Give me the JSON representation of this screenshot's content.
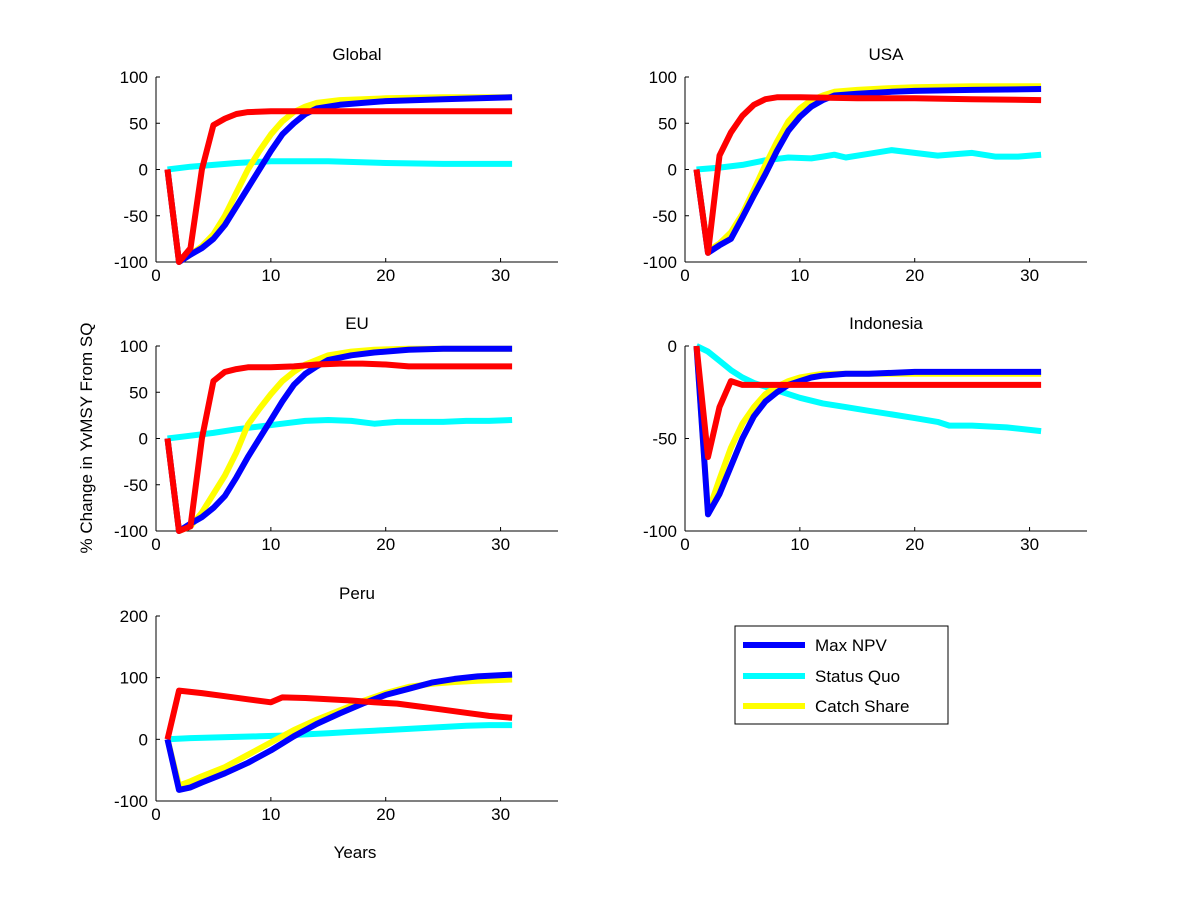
{
  "colors": {
    "max_npv": "#0000ff",
    "status_quo": "#00ffff",
    "catch_share": "#ffff00",
    "red_series": "#ff0000",
    "axes": "#000000",
    "background": "#ffffff"
  },
  "figure": {
    "ylabel": "% Change in YvMSY From SQ",
    "xlabel": "Years"
  },
  "legend": {
    "placement": "right of Peru panel",
    "entries": [
      {
        "label": "Max NPV",
        "color": "#0000ff"
      },
      {
        "label": "Status Quo",
        "color": "#00ffff"
      },
      {
        "label": "Catch Share",
        "color": "#ffff00"
      }
    ]
  },
  "chart_data": [
    {
      "type": "line",
      "title": "Global",
      "xlim": [
        0,
        35
      ],
      "ylim": [
        -100,
        100
      ],
      "xticks": [
        0,
        10,
        20,
        30
      ],
      "yticks": [
        -100,
        -50,
        0,
        50,
        100
      ],
      "series": [
        {
          "name": "Status Quo",
          "color": "#00ffff",
          "x": [
            1,
            3,
            5,
            7,
            10,
            15,
            20,
            25,
            31
          ],
          "y": [
            0,
            3,
            5,
            7,
            9,
            9,
            7,
            6,
            6
          ]
        },
        {
          "name": "Catch Share",
          "color": "#ffff00",
          "x": [
            1,
            2,
            3,
            4,
            5,
            6,
            7,
            8,
            9,
            10,
            11,
            12,
            13,
            14,
            16,
            18,
            20,
            25,
            31
          ],
          "y": [
            0,
            -100,
            -92,
            -83,
            -70,
            -50,
            -25,
            0,
            20,
            38,
            52,
            62,
            68,
            72,
            75,
            76,
            77,
            78,
            78
          ]
        },
        {
          "name": "Max NPV",
          "color": "#0000ff",
          "x": [
            1,
            2,
            3,
            4,
            5,
            6,
            7,
            8,
            9,
            10,
            11,
            12,
            13,
            14,
            16,
            18,
            20,
            25,
            31
          ],
          "y": [
            0,
            -100,
            -92,
            -85,
            -75,
            -60,
            -40,
            -20,
            0,
            20,
            38,
            50,
            60,
            66,
            70,
            72,
            74,
            76,
            78
          ]
        },
        {
          "color": "#ff0000",
          "x": [
            1,
            2,
            3,
            4,
            5,
            6,
            7,
            8,
            10,
            15,
            20,
            25,
            31
          ],
          "y": [
            0,
            -100,
            -85,
            0,
            48,
            55,
            60,
            62,
            63,
            63,
            63,
            63,
            63
          ]
        }
      ]
    },
    {
      "type": "line",
      "title": "USA",
      "xlim": [
        0,
        35
      ],
      "ylim": [
        -100,
        100
      ],
      "xticks": [
        0,
        10,
        20,
        30
      ],
      "yticks": [
        -100,
        -50,
        0,
        50,
        100
      ],
      "series": [
        {
          "name": "Status Quo",
          "color": "#00ffff",
          "x": [
            1,
            3,
            5,
            7,
            9,
            11,
            12,
            13,
            14,
            16,
            18,
            20,
            22,
            24,
            25,
            27,
            29,
            31
          ],
          "y": [
            0,
            2,
            5,
            10,
            13,
            12,
            14,
            16,
            13,
            17,
            21,
            18,
            15,
            17,
            18,
            14,
            14,
            16
          ]
        },
        {
          "name": "Catch Share",
          "color": "#ffff00",
          "x": [
            1,
            2,
            3,
            4,
            5,
            6,
            7,
            8,
            9,
            10,
            11,
            12,
            13,
            15,
            18,
            20,
            25,
            31
          ],
          "y": [
            0,
            -88,
            -80,
            -68,
            -48,
            -22,
            5,
            30,
            52,
            66,
            75,
            80,
            84,
            86,
            88,
            89,
            90,
            90
          ]
        },
        {
          "name": "Max NPV",
          "color": "#0000ff",
          "x": [
            1,
            2,
            3,
            4,
            5,
            6,
            7,
            8,
            9,
            10,
            11,
            12,
            13,
            15,
            18,
            20,
            25,
            31
          ],
          "y": [
            0,
            -90,
            -82,
            -75,
            -52,
            -28,
            -5,
            20,
            42,
            57,
            68,
            75,
            80,
            82,
            84,
            85,
            86,
            87
          ]
        },
        {
          "color": "#ff0000",
          "x": [
            1,
            2,
            3,
            4,
            5,
            6,
            7,
            8,
            9,
            10,
            15,
            20,
            25,
            31
          ],
          "y": [
            0,
            -90,
            15,
            40,
            58,
            70,
            76,
            78,
            78,
            78,
            77,
            77,
            76,
            75
          ]
        }
      ]
    },
    {
      "type": "line",
      "title": "EU",
      "xlim": [
        0,
        35
      ],
      "ylim": [
        -100,
        100
      ],
      "xticks": [
        0,
        10,
        20,
        30
      ],
      "yticks": [
        -100,
        -50,
        0,
        50,
        100
      ],
      "series": [
        {
          "name": "Status Quo",
          "color": "#00ffff",
          "x": [
            1,
            3,
            5,
            7,
            9,
            11,
            13,
            15,
            17,
            19,
            21,
            23,
            25,
            27,
            29,
            31
          ],
          "y": [
            0,
            3,
            6,
            10,
            13,
            16,
            19,
            20,
            19,
            16,
            18,
            18,
            18,
            19,
            19,
            20
          ]
        },
        {
          "name": "Catch Share",
          "color": "#ffff00",
          "x": [
            1,
            2,
            3,
            4,
            5,
            6,
            7,
            8,
            9,
            10,
            11,
            12,
            13,
            14,
            15,
            17,
            19,
            22,
            25,
            31
          ],
          "y": [
            0,
            -100,
            -95,
            -80,
            -60,
            -40,
            -15,
            15,
            32,
            48,
            62,
            72,
            80,
            85,
            90,
            94,
            96,
            97,
            97,
            97
          ]
        },
        {
          "name": "Max NPV",
          "color": "#0000ff",
          "x": [
            1,
            2,
            3,
            4,
            5,
            6,
            7,
            8,
            9,
            10,
            11,
            12,
            13,
            14,
            15,
            17,
            19,
            22,
            25,
            31
          ],
          "y": [
            0,
            -100,
            -92,
            -85,
            -75,
            -62,
            -42,
            -20,
            0,
            20,
            40,
            58,
            70,
            78,
            85,
            90,
            93,
            96,
            97,
            97
          ]
        },
        {
          "color": "#ff0000",
          "x": [
            1,
            2,
            3,
            4,
            5,
            6,
            7,
            8,
            10,
            12,
            14,
            16,
            18,
            20,
            22,
            25,
            31
          ],
          "y": [
            0,
            -100,
            -95,
            0,
            62,
            72,
            75,
            77,
            77,
            78,
            80,
            81,
            81,
            80,
            78,
            78,
            78
          ]
        }
      ]
    },
    {
      "type": "line",
      "title": "Indonesia",
      "xlim": [
        0,
        35
      ],
      "ylim": [
        -100,
        0
      ],
      "xticks": [
        0,
        10,
        20,
        30
      ],
      "yticks": [
        -100,
        -50,
        0
      ],
      "series": [
        {
          "name": "Status Quo",
          "color": "#00ffff",
          "x": [
            1,
            2,
            3,
            4,
            5,
            6,
            8,
            10,
            12,
            14,
            16,
            18,
            20,
            22,
            23,
            25,
            28,
            31
          ],
          "y": [
            0,
            -3,
            -8,
            -13,
            -17,
            -20,
            -24,
            -28,
            -31,
            -33,
            -35,
            -37,
            -39,
            -41,
            -43,
            -43,
            -44,
            -46
          ]
        },
        {
          "name": "Catch Share",
          "color": "#ffff00",
          "x": [
            1,
            2,
            3,
            4,
            5,
            6,
            7,
            8,
            9,
            10,
            11,
            12,
            14,
            16,
            20,
            25,
            31
          ],
          "y": [
            0,
            -90,
            -72,
            -55,
            -42,
            -33,
            -26,
            -22,
            -19,
            -17,
            -16,
            -15,
            -15,
            -15,
            -15,
            -15,
            -15
          ]
        },
        {
          "name": "Max NPV",
          "color": "#0000ff",
          "x": [
            1,
            2,
            3,
            4,
            5,
            6,
            7,
            8,
            9,
            10,
            11,
            12,
            14,
            16,
            20,
            25,
            31
          ],
          "y": [
            0,
            -91,
            -80,
            -65,
            -50,
            -38,
            -30,
            -25,
            -21,
            -19,
            -17,
            -16,
            -15,
            -15,
            -14,
            -14,
            -14
          ]
        },
        {
          "color": "#ff0000",
          "x": [
            1,
            2,
            3,
            4,
            5,
            6,
            7,
            8,
            10,
            15,
            20,
            25,
            31
          ],
          "y": [
            0,
            -60,
            -33,
            -19,
            -21,
            -21,
            -21,
            -21,
            -21,
            -21,
            -21,
            -21,
            -21
          ]
        }
      ]
    },
    {
      "type": "line",
      "title": "Peru",
      "xlim": [
        0,
        35
      ],
      "ylim": [
        -100,
        200
      ],
      "xticks": [
        0,
        10,
        20,
        30
      ],
      "yticks": [
        -100,
        0,
        100,
        200
      ],
      "series": [
        {
          "name": "Status Quo",
          "color": "#00ffff",
          "x": [
            1,
            3,
            5,
            7,
            9,
            11,
            13,
            15,
            17,
            19,
            21,
            23,
            25,
            27,
            29,
            31
          ],
          "y": [
            0,
            2,
            3,
            4,
            5,
            6,
            8,
            10,
            12,
            14,
            16,
            18,
            20,
            22,
            23,
            23
          ]
        },
        {
          "name": "Catch Share",
          "color": "#ffff00",
          "x": [
            1,
            2,
            3,
            4,
            6,
            8,
            10,
            12,
            14,
            16,
            18,
            20,
            22,
            24,
            26,
            28,
            31
          ],
          "y": [
            0,
            -75,
            -68,
            -60,
            -45,
            -25,
            -5,
            15,
            32,
            47,
            62,
            75,
            85,
            90,
            93,
            95,
            97
          ]
        },
        {
          "name": "Max NPV",
          "color": "#0000ff",
          "x": [
            1,
            2,
            3,
            4,
            6,
            8,
            10,
            12,
            14,
            16,
            18,
            20,
            22,
            24,
            26,
            28,
            31
          ],
          "y": [
            0,
            -82,
            -78,
            -70,
            -55,
            -38,
            -18,
            5,
            25,
            42,
            58,
            72,
            82,
            92,
            98,
            102,
            105
          ]
        },
        {
          "color": "#ff0000",
          "x": [
            1,
            2,
            4,
            6,
            8,
            10,
            11,
            13,
            15,
            17,
            19,
            21,
            23,
            25,
            27,
            29,
            31
          ],
          "y": [
            0,
            79,
            75,
            70,
            65,
            60,
            68,
            67,
            65,
            63,
            60,
            58,
            53,
            48,
            43,
            38,
            35
          ]
        }
      ]
    }
  ]
}
